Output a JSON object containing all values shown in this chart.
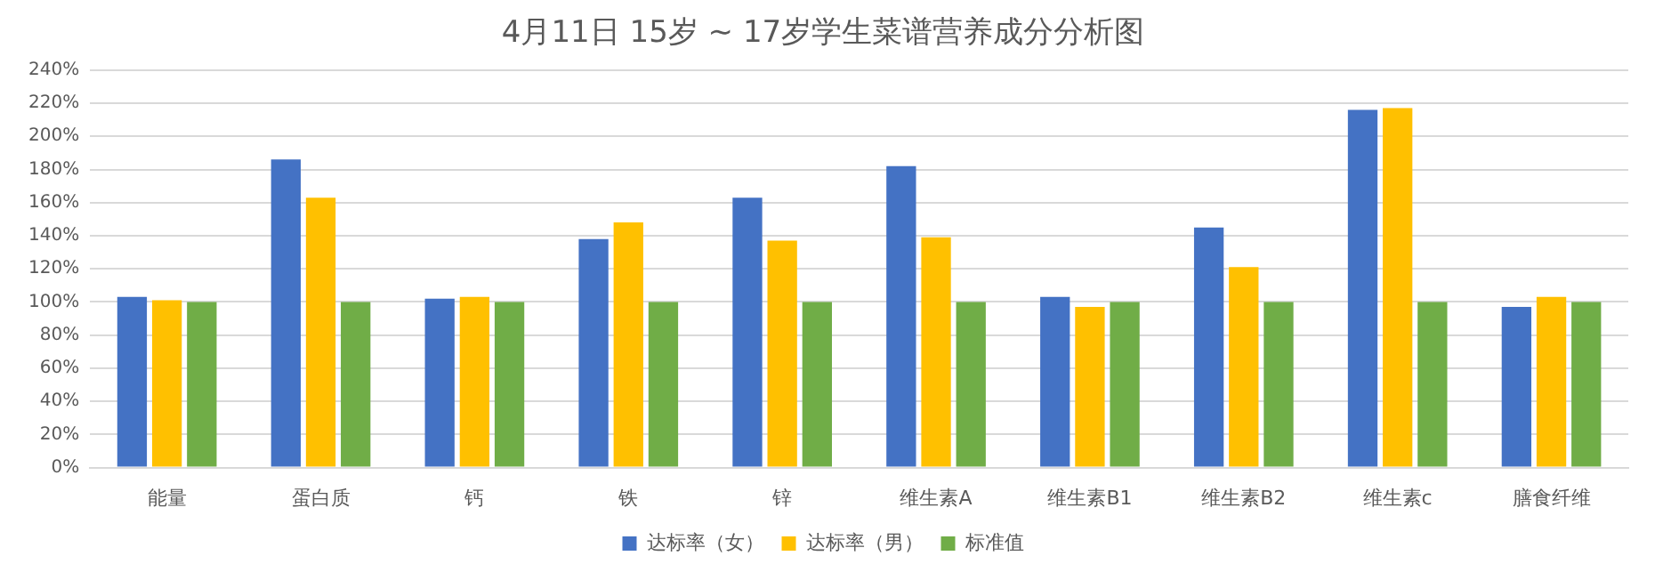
{
  "chart_data": {
    "type": "bar",
    "title": "4月11日 15岁 ~ 17岁学生菜谱营养成分分析图",
    "categories": [
      "能量",
      "蛋白质",
      "钙",
      "铁",
      "锌",
      "维生素A",
      "维生素B1",
      "维生素B2",
      "维生素c",
      "膳食纤维"
    ],
    "series": [
      {
        "name": "达标率（女）",
        "color": "#4472c4",
        "values": [
          103,
          186,
          102,
          138,
          163,
          182,
          103,
          145,
          216,
          97
        ]
      },
      {
        "name": "达标率（男）",
        "color": "#ffc000",
        "values": [
          101,
          163,
          103,
          148,
          137,
          139,
          97,
          121,
          217,
          103
        ]
      },
      {
        "name": "标准值",
        "color": "#70ad47",
        "values": [
          100,
          100,
          100,
          100,
          100,
          100,
          100,
          100,
          100,
          100
        ]
      }
    ],
    "ylim": [
      0,
      240
    ],
    "yticks": [
      {
        "value": 0,
        "label": "0%"
      },
      {
        "value": 20,
        "label": "20%"
      },
      {
        "value": 40,
        "label": "40%"
      },
      {
        "value": 60,
        "label": "60%"
      },
      {
        "value": 80,
        "label": "80%"
      },
      {
        "value": 100,
        "label": "100%"
      },
      {
        "value": 120,
        "label": "120%"
      },
      {
        "value": 140,
        "label": "140%"
      },
      {
        "value": 160,
        "label": "160%"
      },
      {
        "value": 180,
        "label": "180%"
      },
      {
        "value": 200,
        "label": "200%"
      },
      {
        "value": 220,
        "label": "220%"
      },
      {
        "value": 240,
        "label": "240%"
      }
    ],
    "grid": "y",
    "legend": "bottom"
  }
}
